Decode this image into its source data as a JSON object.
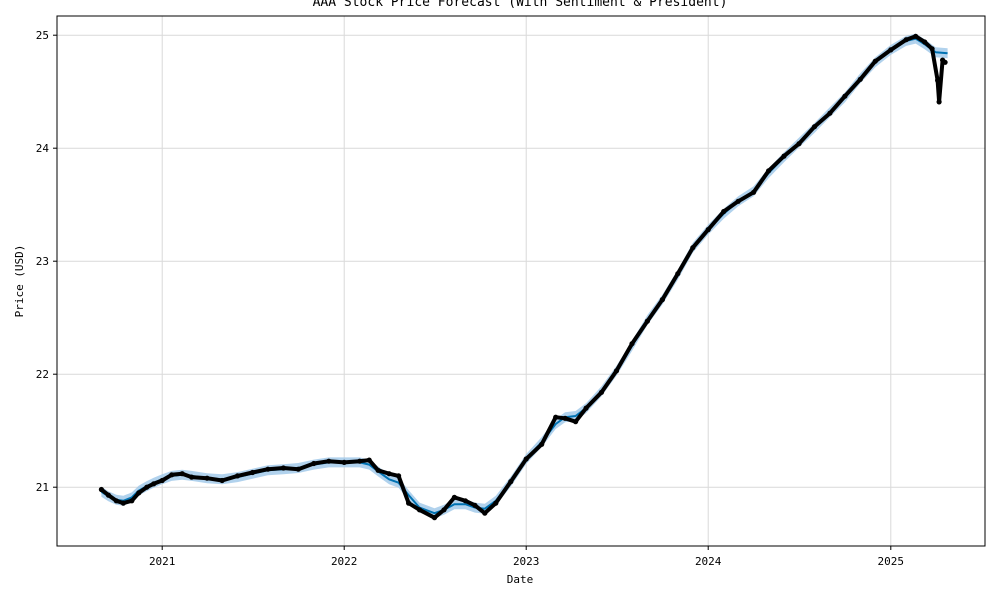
{
  "chart_data": {
    "type": "line",
    "title": "AAA Stock Price Forecast (With Sentiment & President)",
    "xlabel": "Date",
    "ylabel": "Price (USD)",
    "xlim": [
      "2020-06-04",
      "2025-07-09"
    ],
    "ylim": [
      20.48,
      25.17
    ],
    "x_ticks": [
      {
        "value": "2021-01-01",
        "label": "2021"
      },
      {
        "value": "2022-01-01",
        "label": "2022"
      },
      {
        "value": "2023-01-01",
        "label": "2023"
      },
      {
        "value": "2024-01-01",
        "label": "2024"
      },
      {
        "value": "2025-01-01",
        "label": "2025"
      }
    ],
    "y_ticks": [
      21,
      22,
      23,
      24,
      25
    ],
    "grid": true,
    "colors": {
      "observed": "#000000",
      "forecast": "#0072B2",
      "band": "#9ec7e8",
      "grid": "#d9d9d9"
    },
    "series": [
      {
        "kind": "forecast",
        "points": [
          [
            "2020-09-01",
            20.96
          ],
          [
            "2020-09-15",
            20.92
          ],
          [
            "2020-10-01",
            20.89
          ],
          [
            "2020-10-15",
            20.88
          ],
          [
            "2020-11-01",
            20.91
          ],
          [
            "2020-11-15",
            20.97
          ],
          [
            "2020-12-01",
            21.01
          ],
          [
            "2020-12-15",
            21.04
          ],
          [
            "2021-01-01",
            21.07
          ],
          [
            "2021-01-20",
            21.1
          ],
          [
            "2021-02-10",
            21.11
          ],
          [
            "2021-03-01",
            21.1
          ],
          [
            "2021-04-01",
            21.08
          ],
          [
            "2021-05-01",
            21.07
          ],
          [
            "2021-06-01",
            21.09
          ],
          [
            "2021-07-01",
            21.12
          ],
          [
            "2021-08-01",
            21.15
          ],
          [
            "2021-09-01",
            21.16
          ],
          [
            "2021-10-01",
            21.17
          ],
          [
            "2021-11-01",
            21.2
          ],
          [
            "2021-12-01",
            21.22
          ],
          [
            "2022-01-01",
            21.22
          ],
          [
            "2022-02-01",
            21.22
          ],
          [
            "2022-02-20",
            21.2
          ],
          [
            "2022-03-10",
            21.14
          ],
          [
            "2022-04-01",
            21.07
          ],
          [
            "2022-04-20",
            21.04
          ],
          [
            "2022-05-10",
            20.93
          ],
          [
            "2022-06-01",
            20.82
          ],
          [
            "2022-07-01",
            20.77
          ],
          [
            "2022-07-20",
            20.8
          ],
          [
            "2022-08-10",
            20.85
          ],
          [
            "2022-09-01",
            20.85
          ],
          [
            "2022-09-20",
            20.82
          ],
          [
            "2022-10-10",
            20.81
          ],
          [
            "2022-11-01",
            20.88
          ],
          [
            "2022-12-01",
            21.05
          ],
          [
            "2023-01-01",
            21.25
          ],
          [
            "2023-02-01",
            21.4
          ],
          [
            "2023-03-01",
            21.56
          ],
          [
            "2023-03-20",
            21.62
          ],
          [
            "2023-04-10",
            21.63
          ],
          [
            "2023-05-01",
            21.7
          ],
          [
            "2023-06-01",
            21.85
          ],
          [
            "2023-07-01",
            22.03
          ],
          [
            "2023-08-01",
            22.25
          ],
          [
            "2023-09-01",
            22.48
          ],
          [
            "2023-10-01",
            22.66
          ],
          [
            "2023-11-01",
            22.88
          ],
          [
            "2023-12-01",
            23.12
          ],
          [
            "2024-01-01",
            23.28
          ],
          [
            "2024-02-01",
            23.42
          ],
          [
            "2024-03-01",
            23.53
          ],
          [
            "2024-04-01",
            23.62
          ],
          [
            "2024-05-01",
            23.78
          ],
          [
            "2024-06-01",
            23.92
          ],
          [
            "2024-07-01",
            24.05
          ],
          [
            "2024-08-01",
            24.18
          ],
          [
            "2024-09-01",
            24.32
          ],
          [
            "2024-10-01",
            24.45
          ],
          [
            "2024-11-01",
            24.62
          ],
          [
            "2024-12-01",
            24.76
          ],
          [
            "2025-01-01",
            24.87
          ],
          [
            "2025-02-01",
            24.95
          ],
          [
            "2025-02-20",
            24.97
          ],
          [
            "2025-03-10",
            24.92
          ],
          [
            "2025-04-01",
            24.85
          ],
          [
            "2025-04-25",
            24.84
          ]
        ]
      },
      {
        "kind": "observed",
        "points": [
          [
            "2020-09-01",
            20.98
          ],
          [
            "2020-09-15",
            20.93
          ],
          [
            "2020-10-01",
            20.88
          ],
          [
            "2020-10-15",
            20.86
          ],
          [
            "2020-11-01",
            20.88
          ],
          [
            "2020-11-15",
            20.95
          ],
          [
            "2020-12-01",
            21.0
          ],
          [
            "2020-12-15",
            21.03
          ],
          [
            "2021-01-01",
            21.06
          ],
          [
            "2021-01-20",
            21.11
          ],
          [
            "2021-02-10",
            21.12
          ],
          [
            "2021-03-01",
            21.09
          ],
          [
            "2021-04-01",
            21.08
          ],
          [
            "2021-05-01",
            21.06
          ],
          [
            "2021-06-01",
            21.1
          ],
          [
            "2021-07-01",
            21.13
          ],
          [
            "2021-08-01",
            21.16
          ],
          [
            "2021-09-01",
            21.17
          ],
          [
            "2021-10-01",
            21.16
          ],
          [
            "2021-11-01",
            21.21
          ],
          [
            "2021-12-01",
            21.23
          ],
          [
            "2022-01-01",
            21.22
          ],
          [
            "2022-02-01",
            21.23
          ],
          [
            "2022-02-20",
            21.24
          ],
          [
            "2022-03-10",
            21.15
          ],
          [
            "2022-04-01",
            21.12
          ],
          [
            "2022-04-20",
            21.1
          ],
          [
            "2022-05-10",
            20.86
          ],
          [
            "2022-06-01",
            20.8
          ],
          [
            "2022-07-01",
            20.73
          ],
          [
            "2022-07-20",
            20.8
          ],
          [
            "2022-08-10",
            20.91
          ],
          [
            "2022-09-01",
            20.88
          ],
          [
            "2022-09-20",
            20.84
          ],
          [
            "2022-10-10",
            20.77
          ],
          [
            "2022-11-01",
            20.86
          ],
          [
            "2022-12-01",
            21.05
          ],
          [
            "2023-01-01",
            21.25
          ],
          [
            "2023-02-01",
            21.38
          ],
          [
            "2023-03-01",
            21.62
          ],
          [
            "2023-03-20",
            21.61
          ],
          [
            "2023-04-10",
            21.58
          ],
          [
            "2023-05-01",
            21.7
          ],
          [
            "2023-06-01",
            21.84
          ],
          [
            "2023-07-01",
            22.03
          ],
          [
            "2023-08-01",
            22.27
          ],
          [
            "2023-09-01",
            22.47
          ],
          [
            "2023-10-01",
            22.66
          ],
          [
            "2023-11-01",
            22.89
          ],
          [
            "2023-12-01",
            23.12
          ],
          [
            "2024-01-01",
            23.28
          ],
          [
            "2024-02-01",
            23.44
          ],
          [
            "2024-03-01",
            23.53
          ],
          [
            "2024-04-01",
            23.61
          ],
          [
            "2024-05-01",
            23.8
          ],
          [
            "2024-06-01",
            23.93
          ],
          [
            "2024-07-01",
            24.04
          ],
          [
            "2024-08-01",
            24.19
          ],
          [
            "2024-09-01",
            24.31
          ],
          [
            "2024-10-01",
            24.46
          ],
          [
            "2024-11-01",
            24.61
          ],
          [
            "2024-12-01",
            24.77
          ],
          [
            "2025-01-01",
            24.87
          ],
          [
            "2025-02-01",
            24.96
          ],
          [
            "2025-02-20",
            24.99
          ],
          [
            "2025-03-10",
            24.94
          ],
          [
            "2025-03-25",
            24.88
          ],
          [
            "2025-04-05",
            24.6
          ],
          [
            "2025-04-08",
            24.41
          ],
          [
            "2025-04-15",
            24.78
          ],
          [
            "2025-04-20",
            24.76
          ]
        ]
      }
    ]
  }
}
